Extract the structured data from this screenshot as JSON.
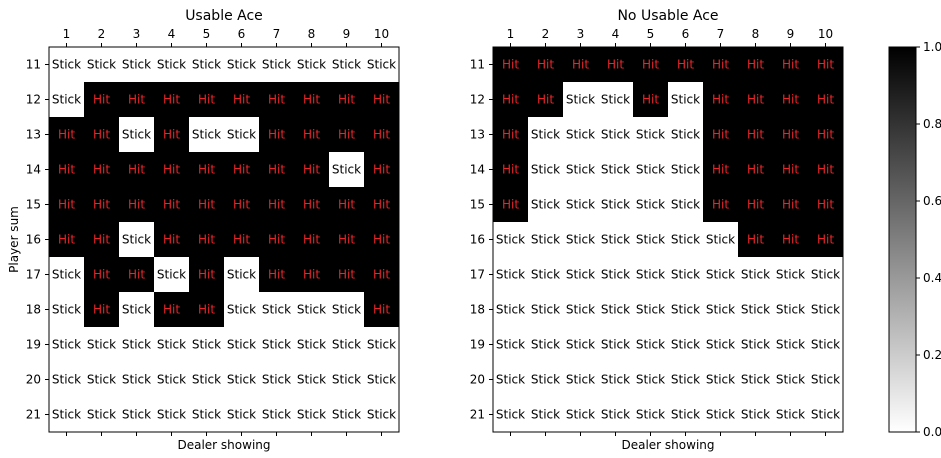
{
  "chart_data": [
    {
      "type": "heatmap",
      "title": "Usable Ace",
      "xlabel": "Dealer showing",
      "ylabel": "Player sum",
      "x": [
        "1",
        "2",
        "3",
        "4",
        "5",
        "6",
        "7",
        "8",
        "9",
        "10"
      ],
      "y": [
        "11",
        "12",
        "13",
        "14",
        "15",
        "16",
        "17",
        "18",
        "19",
        "20",
        "21"
      ],
      "values": [
        [
          0,
          0,
          0,
          0,
          0,
          0,
          0,
          0,
          0,
          0
        ],
        [
          0,
          1,
          1,
          1,
          1,
          1,
          1,
          1,
          1,
          1
        ],
        [
          1,
          1,
          0,
          1,
          0,
          0,
          1,
          1,
          1,
          1
        ],
        [
          1,
          1,
          1,
          1,
          1,
          1,
          1,
          1,
          0,
          1
        ],
        [
          1,
          1,
          1,
          1,
          1,
          1,
          1,
          1,
          1,
          1
        ],
        [
          1,
          1,
          0,
          1,
          1,
          1,
          1,
          1,
          1,
          1
        ],
        [
          0,
          1,
          1,
          0,
          1,
          0,
          1,
          1,
          1,
          1
        ],
        [
          0,
          1,
          0,
          1,
          1,
          0,
          0,
          0,
          0,
          1
        ],
        [
          0,
          0,
          0,
          0,
          0,
          0,
          0,
          0,
          0,
          0
        ],
        [
          0,
          0,
          0,
          0,
          0,
          0,
          0,
          0,
          0,
          0
        ],
        [
          0,
          0,
          0,
          0,
          0,
          0,
          0,
          0,
          0,
          0
        ]
      ],
      "cell_labels": {
        "1": "Hit",
        "0": "Stick"
      }
    },
    {
      "type": "heatmap",
      "title": "No Usable Ace",
      "xlabel": "Dealer showing",
      "ylabel": "",
      "x": [
        "1",
        "2",
        "3",
        "4",
        "5",
        "6",
        "7",
        "8",
        "9",
        "10"
      ],
      "y": [
        "11",
        "12",
        "13",
        "14",
        "15",
        "16",
        "17",
        "18",
        "19",
        "20",
        "21"
      ],
      "values": [
        [
          1,
          1,
          1,
          1,
          1,
          1,
          1,
          1,
          1,
          1
        ],
        [
          1,
          1,
          0,
          0,
          1,
          0,
          1,
          1,
          1,
          1
        ],
        [
          1,
          0,
          0,
          0,
          0,
          0,
          1,
          1,
          1,
          1
        ],
        [
          1,
          0,
          0,
          0,
          0,
          0,
          1,
          1,
          1,
          1
        ],
        [
          1,
          0,
          0,
          0,
          0,
          0,
          1,
          1,
          1,
          1
        ],
        [
          0,
          0,
          0,
          0,
          0,
          0,
          0,
          1,
          1,
          1
        ],
        [
          0,
          0,
          0,
          0,
          0,
          0,
          0,
          0,
          0,
          0
        ],
        [
          0,
          0,
          0,
          0,
          0,
          0,
          0,
          0,
          0,
          0
        ],
        [
          0,
          0,
          0,
          0,
          0,
          0,
          0,
          0,
          0,
          0
        ],
        [
          0,
          0,
          0,
          0,
          0,
          0,
          0,
          0,
          0,
          0
        ],
        [
          0,
          0,
          0,
          0,
          0,
          0,
          0,
          0,
          0,
          0
        ]
      ],
      "cell_labels": {
        "1": "Hit",
        "0": "Stick"
      }
    }
  ],
  "colorbar": {
    "ticks": [
      "0.0",
      "0.2",
      "0.4",
      "0.6",
      "0.8",
      "1.0"
    ],
    "tick_values": [
      0,
      0.2,
      0.4,
      0.6,
      0.8,
      1.0
    ],
    "range": [
      0,
      1
    ],
    "colormap": "gray_r"
  },
  "colors": {
    "hit_cell": "#000000",
    "stick_cell": "#ffffff",
    "hit_text": "#e8262a",
    "stick_text": "#000000"
  }
}
